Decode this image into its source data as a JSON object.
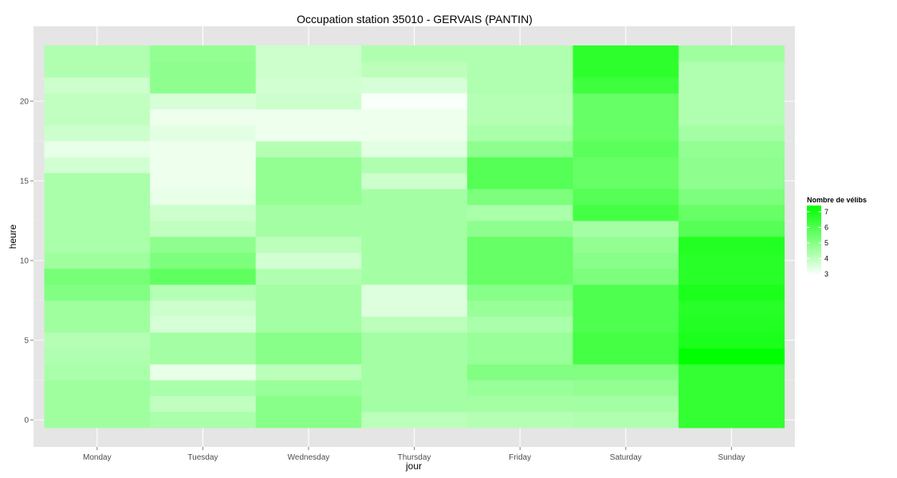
{
  "chart_data": {
    "type": "heatmap",
    "title": "Occupation station 35010 - GERVAIS (PANTIN)",
    "xlabel": "jour",
    "ylabel": "heure",
    "categories": [
      "Monday",
      "Tuesday",
      "Wednesday",
      "Thursday",
      "Friday",
      "Saturday",
      "Sunday"
    ],
    "hours": [
      0,
      1,
      2,
      3,
      4,
      5,
      6,
      7,
      8,
      9,
      10,
      11,
      12,
      13,
      14,
      15,
      16,
      17,
      18,
      19,
      20,
      21,
      22,
      23
    ],
    "values": [
      [
        4.6,
        4.4,
        5.0,
        4.1,
        4.2,
        4.3,
        6.5
      ],
      [
        4.6,
        4.0,
        5.0,
        4.5,
        4.5,
        4.5,
        6.5
      ],
      [
        4.6,
        4.4,
        4.7,
        4.5,
        4.7,
        4.8,
        6.5
      ],
      [
        4.4,
        3.3,
        4.1,
        4.5,
        5.1,
        5.1,
        6.5
      ],
      [
        4.3,
        4.5,
        5.0,
        4.5,
        4.7,
        6.2,
        7.4
      ],
      [
        4.2,
        4.5,
        5.0,
        4.5,
        4.7,
        6.2,
        6.9
      ],
      [
        4.6,
        3.6,
        4.5,
        4.1,
        4.4,
        6.0,
        6.8
      ],
      [
        4.6,
        3.8,
        4.5,
        3.5,
        4.7,
        6.0,
        6.7
      ],
      [
        5.1,
        4.2,
        4.5,
        3.5,
        5.0,
        6.0,
        6.9
      ],
      [
        5.3,
        5.7,
        4.3,
        4.5,
        5.6,
        5.2,
        6.7
      ],
      [
        4.6,
        5.2,
        3.7,
        4.5,
        5.6,
        5.0,
        6.7
      ],
      [
        4.4,
        4.9,
        4.1,
        4.5,
        5.6,
        4.8,
        6.8
      ],
      [
        4.4,
        4.0,
        4.5,
        4.5,
        4.9,
        4.5,
        5.9
      ],
      [
        4.4,
        3.8,
        4.5,
        4.5,
        4.4,
        6.2,
        5.6
      ],
      [
        4.4,
        3.3,
        4.8,
        4.5,
        5.2,
        5.9,
        5.2
      ],
      [
        4.4,
        3.2,
        4.8,
        3.8,
        5.9,
        5.6,
        4.9
      ],
      [
        3.7,
        3.2,
        4.8,
        4.3,
        5.9,
        5.6,
        4.9
      ],
      [
        3.3,
        3.2,
        4.2,
        3.4,
        4.9,
        5.8,
        4.8
      ],
      [
        3.8,
        3.4,
        3.2,
        3.2,
        4.4,
        5.6,
        4.5
      ],
      [
        4.0,
        3.2,
        3.2,
        3.2,
        4.2,
        5.6,
        4.3
      ],
      [
        4.0,
        3.6,
        3.8,
        3.0,
        4.2,
        5.6,
        4.3
      ],
      [
        3.8,
        4.9,
        3.7,
        3.6,
        4.3,
        6.3,
        4.3
      ],
      [
        4.3,
        4.9,
        3.8,
        4.1,
        4.3,
        6.6,
        4.3
      ],
      [
        4.3,
        4.8,
        3.8,
        4.3,
        4.3,
        6.6,
        4.6
      ]
    ],
    "xlim": [
      0.5,
      7.5
    ],
    "ylim": [
      -0.5,
      23.5
    ],
    "y_ticks": [
      0,
      5,
      10,
      15,
      20
    ],
    "grid": true,
    "legend": {
      "title": "Nombre de vélibs",
      "placement": "right",
      "ticks": [
        7,
        6,
        5,
        4,
        3
      ],
      "range": [
        2.9,
        7.4
      ]
    },
    "colors": {
      "low": "#ffffff",
      "high": "#00ff00",
      "panel": "#e5e5e5",
      "grid": "#ffffff"
    }
  }
}
